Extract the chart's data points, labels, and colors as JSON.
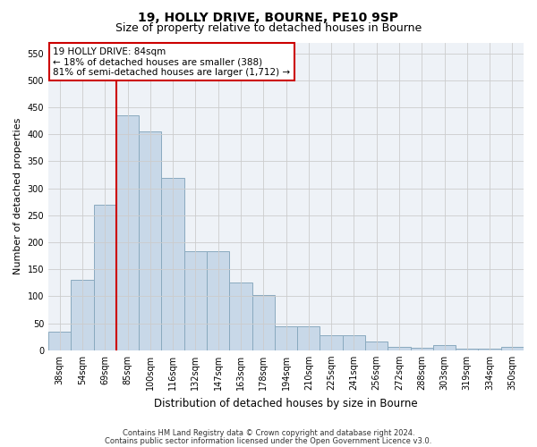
{
  "title1": "19, HOLLY DRIVE, BOURNE, PE10 9SP",
  "title2": "Size of property relative to detached houses in Bourne",
  "xlabel": "Distribution of detached houses by size in Bourne",
  "ylabel": "Number of detached properties",
  "categories": [
    "38sqm",
    "54sqm",
    "69sqm",
    "85sqm",
    "100sqm",
    "116sqm",
    "132sqm",
    "147sqm",
    "163sqm",
    "178sqm",
    "194sqm",
    "210sqm",
    "225sqm",
    "241sqm",
    "256sqm",
    "272sqm",
    "288sqm",
    "303sqm",
    "319sqm",
    "334sqm",
    "350sqm"
  ],
  "values": [
    35,
    130,
    270,
    435,
    405,
    320,
    183,
    183,
    125,
    103,
    45,
    45,
    28,
    28,
    17,
    7,
    5,
    9,
    3,
    3,
    6
  ],
  "bar_color": "#c8d8e8",
  "bar_edge_color": "#8aaabf",
  "vline_color": "#cc0000",
  "vline_pos": 2.5,
  "annotation_text": "19 HOLLY DRIVE: 84sqm\n← 18% of detached houses are smaller (388)\n81% of semi-detached houses are larger (1,712) →",
  "annotation_box_facecolor": "#ffffff",
  "annotation_box_edgecolor": "#cc0000",
  "footer1": "Contains HM Land Registry data © Crown copyright and database right 2024.",
  "footer2": "Contains public sector information licensed under the Open Government Licence v3.0.",
  "ylim": [
    0,
    570
  ],
  "yticks": [
    0,
    50,
    100,
    150,
    200,
    250,
    300,
    350,
    400,
    450,
    500,
    550
  ],
  "grid_color": "#cccccc",
  "bg_color": "#eef2f7",
  "title1_fontsize": 10,
  "title2_fontsize": 9,
  "ylabel_fontsize": 8,
  "xlabel_fontsize": 8.5,
  "tick_fontsize": 7,
  "footer_fontsize": 6,
  "annot_fontsize": 7.5
}
